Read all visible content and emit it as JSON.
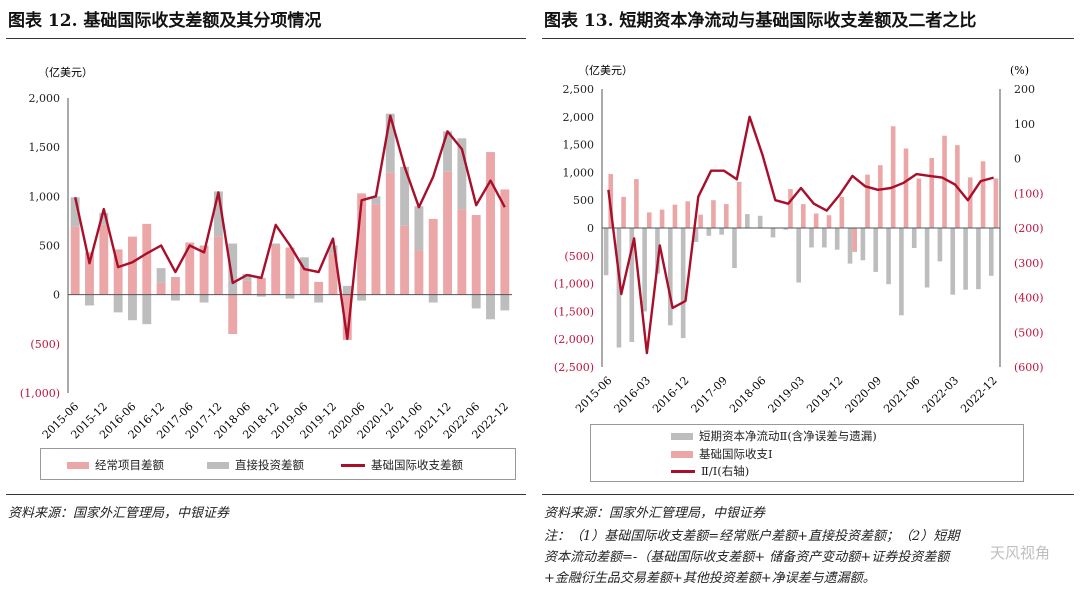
{
  "colors": {
    "current": "#EBA7A7",
    "fdi": "#BDBDBD",
    "line": "#A90E2A"
  },
  "left": {
    "title": "图表 12. 基础国际收支差额及其分项情况",
    "unit": "（亿美元）",
    "legend": [
      "经常项目差额",
      "直接投资差额",
      "基础国际收支差额"
    ],
    "source": "资料来源：国家外汇管理局，中银证券"
  },
  "right": {
    "title": "图表 13. 短期资本净流动与基础国际收支差额及二者之比",
    "unit_left": "（亿美元）",
    "unit_right": "(%)",
    "legend": [
      "短期资本净流动Ⅱ(含净误差与遗漏)",
      "基础国际收支Ⅰ",
      "Ⅱ/Ⅰ(右轴)"
    ],
    "source": "资料来源：国家外汇管理局，中银证券",
    "note": [
      "注：（1）基础国际收支差额=经常账户差额+直接投资差额；（2）短期",
      "资本流动差额=-（基础国际收支差额+ 储备资产变动额+证券投资差额",
      "+金融衍生品交易差额+其他投资差额+净误差与遗漏额。"
    ]
  },
  "watermark": "天风视角",
  "chart_data": [
    {
      "type": "bar",
      "stacked": true,
      "ylim": [
        -1000,
        2000
      ],
      "yticks": [
        "(1,000)",
        "(500)",
        "0",
        "500",
        "1,000",
        "1,500",
        "2,000"
      ],
      "xtick_labels": [
        "2015-06",
        "2015-12",
        "2016-06",
        "2016-12",
        "2017-06",
        "2017-12",
        "2018-06",
        "2018-12",
        "2019-06",
        "2019-12",
        "2020-06",
        "2020-12",
        "2021-06",
        "2021-12",
        "2022-06",
        "2022-12"
      ],
      "x": [
        "2015-06",
        "2015-09",
        "2015-12",
        "2016-03",
        "2016-06",
        "2016-09",
        "2016-12",
        "2017-03",
        "2017-06",
        "2017-09",
        "2017-12",
        "2018-03",
        "2018-06",
        "2018-09",
        "2018-12",
        "2019-03",
        "2019-06",
        "2019-09",
        "2019-12",
        "2020-03",
        "2020-06",
        "2020-09",
        "2020-12",
        "2021-03",
        "2021-06",
        "2021-09",
        "2021-12",
        "2022-03",
        "2022-06",
        "2022-09",
        "2022-12"
      ],
      "series": [
        {
          "name": "经常项目差额",
          "kind": "bar",
          "values": [
            690,
            430,
            710,
            460,
            590,
            720,
            120,
            180,
            530,
            500,
            590,
            -400,
            140,
            170,
            500,
            480,
            270,
            130,
            420,
            -460,
            1030,
            920,
            1240,
            700,
            450,
            770,
            1250,
            870,
            810,
            1450,
            1070
          ]
        },
        {
          "name": "直接投资差额",
          "kind": "bar",
          "values": [
            300,
            -110,
            120,
            -180,
            -260,
            -300,
            150,
            -60,
            0,
            -80,
            460,
            520,
            70,
            -20,
            20,
            -40,
            110,
            -80,
            80,
            90,
            -60,
            80,
            600,
            600,
            450,
            -80,
            410,
            720,
            -140,
            -250,
            -160
          ]
        },
        {
          "name": "基础国际收支差额",
          "kind": "line",
          "values": [
            990,
            320,
            870,
            280,
            330,
            420,
            500,
            230,
            500,
            430,
            1040,
            120,
            200,
            170,
            710,
            500,
            260,
            230,
            570,
            -450,
            960,
            1000,
            1820,
            1300,
            890,
            1200,
            1660,
            1480,
            910,
            1160,
            890
          ]
        }
      ]
    },
    {
      "type": "bar",
      "stacked": false,
      "ylim": [
        -2500,
        2500
      ],
      "y2lim": [
        -600,
        200
      ],
      "yticks": [
        "(2,500)",
        "(2,000)",
        "(1,500)",
        "(1,000)",
        "(500)",
        "0",
        "500",
        "1,000",
        "1,500",
        "2,000",
        "2,500"
      ],
      "y2ticks": [
        "(600)",
        "(500)",
        "(400)",
        "(300)",
        "(200)",
        "(100)",
        "0",
        "100",
        "200"
      ],
      "xtick_labels": [
        "2015-06",
        "2016-03",
        "2016-12",
        "2017-09",
        "2018-06",
        "2019-03",
        "2019-12",
        "2020-09",
        "2021-06",
        "2022-03",
        "2022-12"
      ],
      "x": [
        "2015-06",
        "2015-09",
        "2015-12",
        "2016-03",
        "2016-06",
        "2016-09",
        "2016-12",
        "2017-03",
        "2017-06",
        "2017-09",
        "2017-12",
        "2018-03",
        "2018-06",
        "2018-09",
        "2018-12",
        "2019-03",
        "2019-06",
        "2019-09",
        "2019-12",
        "2020-03",
        "2020-06",
        "2020-09",
        "2020-12",
        "2021-03",
        "2021-06",
        "2021-09",
        "2021-12",
        "2022-03",
        "2022-06",
        "2022-09",
        "2022-12"
      ],
      "series": [
        {
          "name": "短期资本净流动Ⅱ(含净误差与遗漏)",
          "kind": "bar",
          "values": [
            -850,
            -2150,
            -2050,
            -1500,
            -820,
            -1750,
            -1980,
            -250,
            -140,
            -120,
            -720,
            250,
            220,
            -170,
            -30,
            -980,
            -350,
            -350,
            -390,
            -640,
            -580,
            -790,
            -1010,
            -1570,
            -360,
            -1070,
            -600,
            -1200,
            -1110,
            -1100,
            -860
          ]
        },
        {
          "name": "基础国际收支Ⅰ",
          "kind": "bar",
          "values": [
            970,
            560,
            880,
            280,
            330,
            420,
            480,
            240,
            500,
            430,
            830,
            0,
            0,
            0,
            700,
            430,
            260,
            230,
            560,
            -430,
            960,
            1130,
            1830,
            1430,
            890,
            1260,
            1660,
            1490,
            910,
            1200,
            890
          ]
        },
        {
          "name": "Ⅱ/Ⅰ(右轴)",
          "kind": "line",
          "axis": "right",
          "values": [
            -90,
            -390,
            -230,
            -560,
            -250,
            -430,
            -410,
            -110,
            -35,
            -35,
            -60,
            120,
            10,
            -120,
            -130,
            -85,
            -130,
            -150,
            -105,
            -50,
            -80,
            -90,
            -85,
            -70,
            -45,
            -50,
            -55,
            -75,
            -120,
            -65,
            -55
          ]
        }
      ]
    }
  ]
}
